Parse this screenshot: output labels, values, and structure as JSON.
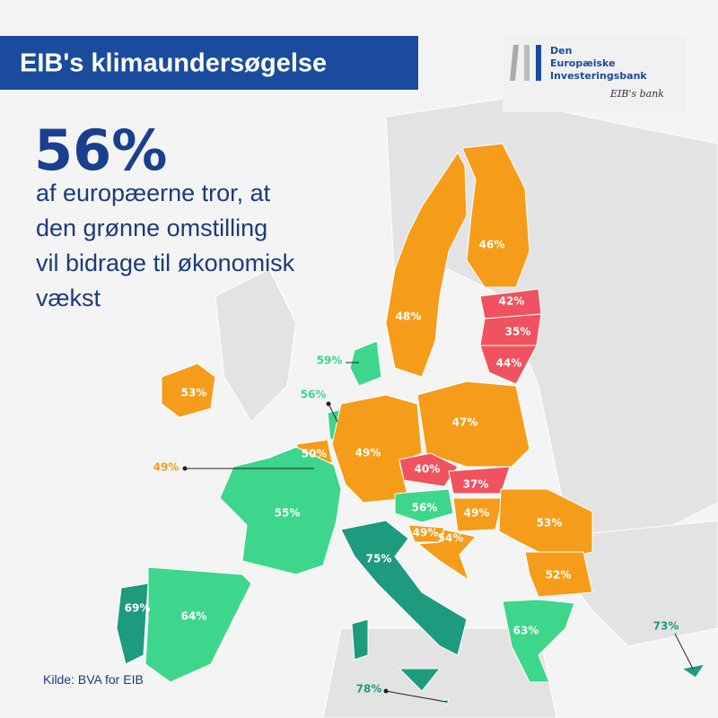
{
  "header": {
    "title": "EIB's klimaundersøgelse"
  },
  "logo": {
    "lines": [
      "Den",
      "Europæiske",
      "Investeringsbank"
    ],
    "tagline": "EIB's bank"
  },
  "headline": {
    "stat": "56%",
    "lines": [
      "af europæerne tror, at",
      "den grønne omstilling",
      "vil bidrage til økonomisk",
      "vækst"
    ]
  },
  "source": "Kilde: BVA for EIB",
  "map": {
    "labels": [
      {
        "label": "46%",
        "color": "#f59c1a"
      },
      {
        "label": "48%",
        "color": "#f59c1a"
      },
      {
        "label": "42%",
        "color": "#f0525f"
      },
      {
        "label": "35%",
        "color": "#f0525f"
      },
      {
        "label": "44%",
        "color": "#f0525f"
      },
      {
        "label": "59%",
        "color": "#3dd68c"
      },
      {
        "label": "53%",
        "color": "#f59c1a"
      },
      {
        "label": "56%",
        "color": "#3dd68c"
      },
      {
        "label": "50%",
        "color": "#f59c1a"
      },
      {
        "label": "49%",
        "color": "#f59c1a"
      },
      {
        "label": "47%",
        "color": "#f59c1a"
      },
      {
        "label": "49%",
        "color": "#f59c1a"
      },
      {
        "label": "40%",
        "color": "#f0525f"
      },
      {
        "label": "37%",
        "color": "#f0525f"
      },
      {
        "label": "56%",
        "color": "#3dd68c"
      },
      {
        "label": "49%",
        "color": "#f59c1a"
      },
      {
        "label": "55%",
        "color": "#3dd68c"
      },
      {
        "label": "53%",
        "color": "#f59c1a"
      },
      {
        "label": "49%",
        "color": "#f59c1a"
      },
      {
        "label": "54%",
        "color": "#f59c1a"
      },
      {
        "label": "75%",
        "color": "#1e9a7e"
      },
      {
        "label": "52%",
        "color": "#f59c1a"
      },
      {
        "label": "69%",
        "color": "#1e9a7e"
      },
      {
        "label": "64%",
        "color": "#3dd68c"
      },
      {
        "label": "63%",
        "color": "#3dd68c"
      },
      {
        "label": "73%",
        "color": "#1e9a7e"
      },
      {
        "label": "78%",
        "color": "#1e9a7e"
      }
    ]
  }
}
